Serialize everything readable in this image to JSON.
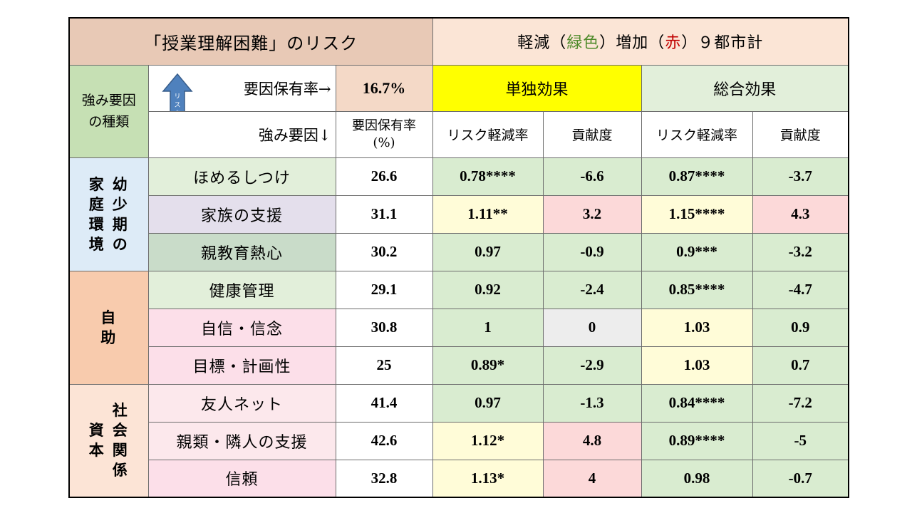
{
  "header": {
    "title": "「授業理解困難」のリスク",
    "legend_part1": "軽減（",
    "legend_green": "緑色",
    "legend_part2": "）増加（",
    "legend_red": "赤",
    "legend_part3": "）９都市計"
  },
  "subheader": {
    "kind_label_line1": "強み要因",
    "kind_label_line2": "の種類",
    "arrow_text": "リスク軽減",
    "holding_rate_label": "要因保有率→",
    "holding_rate_value": "16.7%",
    "single_effect": "単独効果",
    "total_effect": "総合効果",
    "factor_label": "強み要因↓",
    "col_rate_line1": "要因保有率",
    "col_rate_line2": "(%)",
    "col_reduction": "リスク軽減率",
    "col_contribution": "貢献度",
    "col_reduction2": "リスク軽減率",
    "col_contribution2": "貢献度"
  },
  "groups": [
    {
      "label_col1": [
        "家",
        "庭",
        "環",
        "境"
      ],
      "label_col2": [
        "幼",
        "少",
        "期",
        "の"
      ]
    },
    {
      "label": [
        "自",
        "助"
      ]
    },
    {
      "label_col1": [
        "社",
        "会",
        "関",
        "係"
      ],
      "label_col2": [
        "資",
        "本"
      ]
    }
  ],
  "rows": [
    {
      "factor": "ほめるしつけ",
      "rate": "26.6",
      "s_red": "0.78****",
      "s_con": "-6.6",
      "t_red": "0.87****",
      "t_con": "-3.7"
    },
    {
      "factor": "家族の支援",
      "rate": "31.1",
      "s_red": "1.11**",
      "s_con": "3.2",
      "t_red": "1.15****",
      "t_con": "4.3"
    },
    {
      "factor": "親教育熱心",
      "rate": "30.2",
      "s_red": "0.97",
      "s_con": "-0.9",
      "t_red": "0.9***",
      "t_con": "-3.2"
    },
    {
      "factor": "健康管理",
      "rate": "29.1",
      "s_red": "0.92",
      "s_con": "-2.4",
      "t_red": "0.85****",
      "t_con": "-4.7"
    },
    {
      "factor": "自信・信念",
      "rate": "30.8",
      "s_red": "1",
      "s_con": "0",
      "t_red": "1.03",
      "t_con": "0.9"
    },
    {
      "factor": "目標・計画性",
      "rate": "25",
      "s_red": "0.89*",
      "s_con": "-2.9",
      "t_red": "1.03",
      "t_con": "0.7"
    },
    {
      "factor": "友人ネット",
      "rate": "41.4",
      "s_red": "0.97",
      "s_con": "-1.3",
      "t_red": "0.84****",
      "t_con": "-7.2"
    },
    {
      "factor": "親類・隣人の支援",
      "rate": "42.6",
      "s_red": "1.12*",
      "s_con": "4.8",
      "t_red": "0.89****",
      "t_con": "-5"
    },
    {
      "factor": "信頼",
      "rate": "32.8",
      "s_red": "1.13*",
      "s_con": "4",
      "t_red": "0.98",
      "t_con": "-0.7"
    }
  ],
  "colors": {
    "reduce_green": "#d9ecd0",
    "increase_red": "#fcd9d9",
    "slight_increase_yellow": "#fffcd8",
    "neutral_gray": "#ededed",
    "single_effect_header": "#ffff00",
    "arrow_blue": "#4f81bd"
  }
}
